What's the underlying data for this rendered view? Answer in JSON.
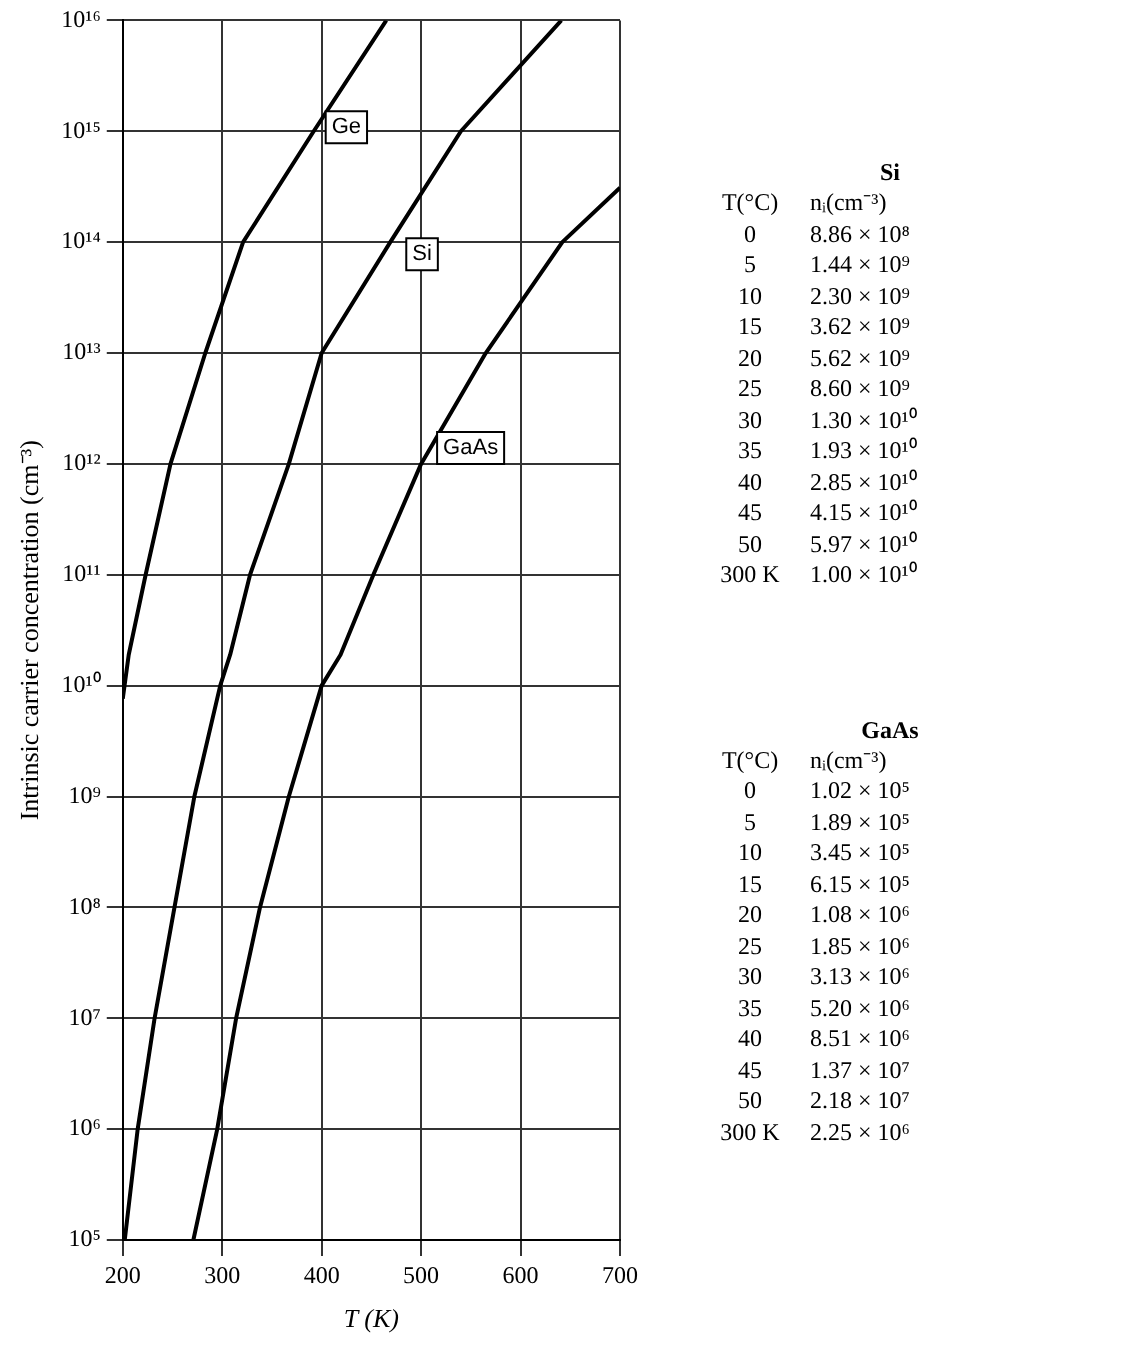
{
  "chart_data": {
    "type": "line",
    "xlabel": "T (K)",
    "ylabel": "Intrinsic carrier concentration (cm⁻³)",
    "log": "y",
    "grid": true,
    "legend": false,
    "marker": "none",
    "line_style": "solid",
    "xlim": [
      200,
      700
    ],
    "xticks": [
      200,
      300,
      400,
      500,
      600,
      700
    ],
    "ylim": [
      100000.0,
      1e+16
    ],
    "yticks": [
      {
        "value": 100000.0,
        "label": "10⁵"
      },
      {
        "value": 1000000.0,
        "label": "10⁶"
      },
      {
        "value": 10000000.0,
        "label": "10⁷"
      },
      {
        "value": 100000000.0,
        "label": "10⁸"
      },
      {
        "value": 1000000000.0,
        "label": "10⁹"
      },
      {
        "value": 10000000000.0,
        "label": "10¹⁰"
      },
      {
        "value": 100000000000.0,
        "label": "10¹¹"
      },
      {
        "value": 1000000000000.0,
        "label": "10¹²"
      },
      {
        "value": 10000000000000.0,
        "label": "10¹³"
      },
      {
        "value": 100000000000000.0,
        "label": "10¹⁴"
      },
      {
        "value": 1000000000000000.0,
        "label": "10¹⁵"
      },
      {
        "value": 1e+16,
        "label": "10¹⁶"
      }
    ],
    "series": [
      {
        "name": "Ge",
        "color": "#000000",
        "x": [
          200,
          206,
          223,
          248,
          283,
          321,
          392,
          465
        ],
        "values": [
          7600000000.0,
          19000000000.0,
          100000000000.0,
          1000000000000.0,
          10000000000000.0,
          100000000000000.0,
          1000000000000000.0,
          1e+16
        ]
      },
      {
        "name": "Si",
        "color": "#000000",
        "x": [
          202,
          215,
          232,
          252,
          272,
          298,
          308,
          328,
          367,
          400,
          469,
          540,
          641
        ],
        "values": [
          100000.0,
          1000000.0,
          10000000.0,
          100000000.0,
          1000000000.0,
          10000000000.0,
          19000000000.0,
          100000000000.0,
          1000000000000.0,
          10000000000000.0,
          100000000000000.0,
          1000000000000000.0,
          1e+16
        ]
      },
      {
        "name": "GaAs",
        "color": "#000000",
        "x": [
          271,
          295,
          314,
          338,
          367,
          400,
          419,
          452,
          500,
          565,
          642,
          700
        ],
        "values": [
          100000.0,
          1000000.0,
          10000000.0,
          100000000.0,
          1000000000.0,
          10000000000.0,
          19000000000.0,
          100000000000.0,
          1000000000000.0,
          10000000000000.0,
          100000000000000.0,
          310000000000000.0
        ]
      }
    ],
    "annotations": [
      "Si",
      "T(°C)\tnᵢ(cm⁻³)",
      "0\t8.86 × 10⁸",
      "5\t1.44 × 10⁹",
      "10\t2.30 × 10⁹",
      "15\t3.62 × 10⁹",
      "20\t5.62 × 10⁹",
      "25\t8.60 × 10⁹",
      "30\t1.30 × 10¹⁰",
      "35\t1.93 × 10¹⁰",
      "40\t2.85 × 10¹⁰",
      "45\t4.15 × 10¹⁰",
      "50\t5.97 × 10¹⁰",
      "300 K\t1.00 × 10¹⁰",
      "GaAs",
      "T(°C)\tnᵢ(cm⁻³)",
      "0\t1.02 × 10⁵",
      "5\t1.89 × 10⁵",
      "10\t3.45 × 10⁵",
      "15\t6.15 × 10⁵",
      "20\t1.08 × 10⁶",
      "25\t1.85 × 10⁶",
      "30\t3.13 × 10⁶",
      "35\t5.20 × 10⁶",
      "40\t8.51 × 10⁶",
      "45\t1.37 × 10⁷",
      "50\t2.18 × 10⁷",
      "300 K\t2.25 × 10⁶"
    ]
  }
}
